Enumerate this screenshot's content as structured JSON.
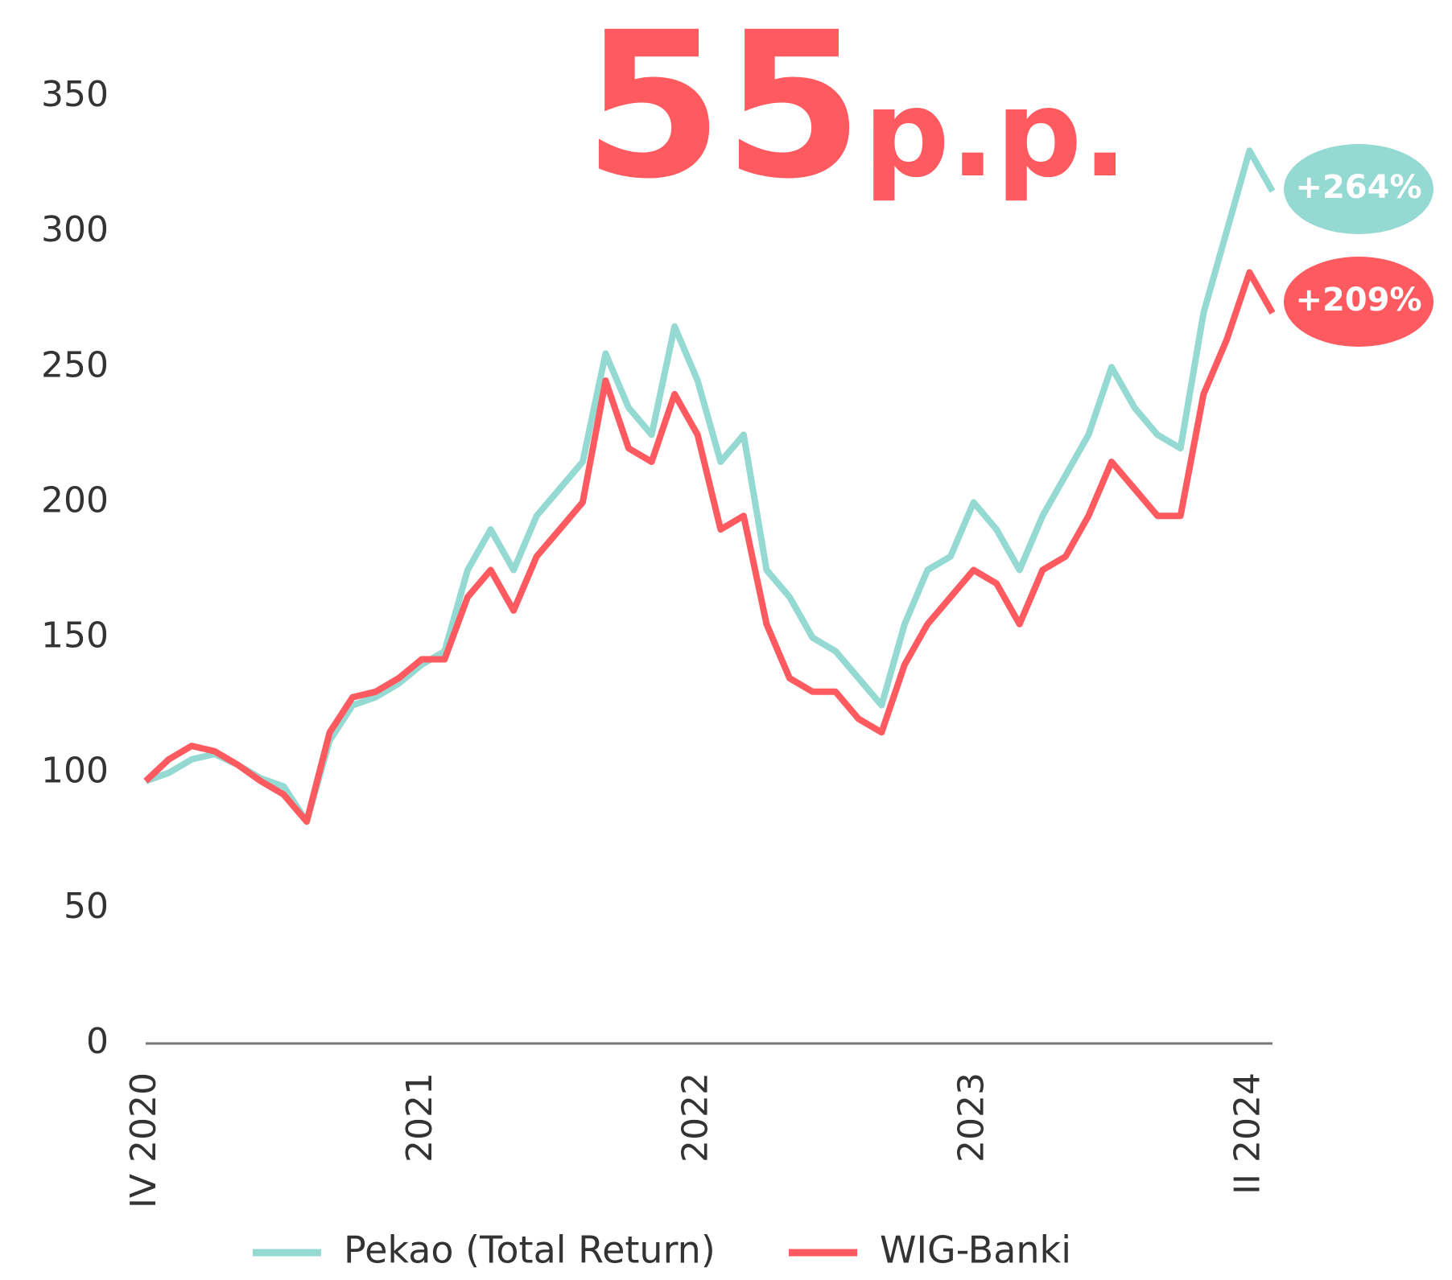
{
  "chart_data": {
    "type": "line",
    "title": {
      "number": "55",
      "unit": "p.p."
    },
    "categories": [
      "IV 2020",
      null,
      null,
      null,
      null,
      null,
      null,
      null,
      null,
      null,
      null,
      null,
      "2021",
      null,
      null,
      null,
      null,
      null,
      null,
      null,
      null,
      null,
      null,
      null,
      "2022",
      null,
      null,
      null,
      null,
      null,
      null,
      null,
      null,
      null,
      null,
      null,
      "2023",
      null,
      null,
      null,
      null,
      null,
      null,
      null,
      null,
      null,
      null,
      null,
      "II 2024",
      null
    ],
    "series": [
      {
        "name": "Pekao (Total Return)",
        "color": "#94d9d2",
        "end_label": "+264%",
        "values": [
          97,
          100,
          105,
          107,
          103,
          98,
          95,
          82,
          112,
          125,
          128,
          133,
          140,
          145,
          175,
          190,
          175,
          195,
          205,
          215,
          255,
          235,
          225,
          265,
          245,
          215,
          225,
          175,
          165,
          150,
          145,
          135,
          125,
          155,
          175,
          180,
          200,
          190,
          175,
          195,
          210,
          225,
          250,
          235,
          225,
          220,
          270,
          300,
          330,
          315
        ]
      },
      {
        "name": "WIG-Banki",
        "color": "#ff5a5f",
        "end_label": "+209%",
        "values": [
          97,
          105,
          110,
          108,
          103,
          97,
          92,
          82,
          115,
          128,
          130,
          135,
          142,
          142,
          165,
          175,
          160,
          180,
          190,
          200,
          245,
          220,
          215,
          240,
          225,
          190,
          195,
          155,
          135,
          130,
          130,
          120,
          115,
          140,
          155,
          165,
          175,
          170,
          155,
          175,
          180,
          195,
          215,
          205,
          195,
          195,
          240,
          260,
          285,
          270
        ]
      }
    ],
    "ylim": [
      0,
      350
    ],
    "yticks": [
      0,
      50,
      100,
      150,
      200,
      250,
      300,
      350
    ],
    "grid": false,
    "legend": "bottom"
  }
}
